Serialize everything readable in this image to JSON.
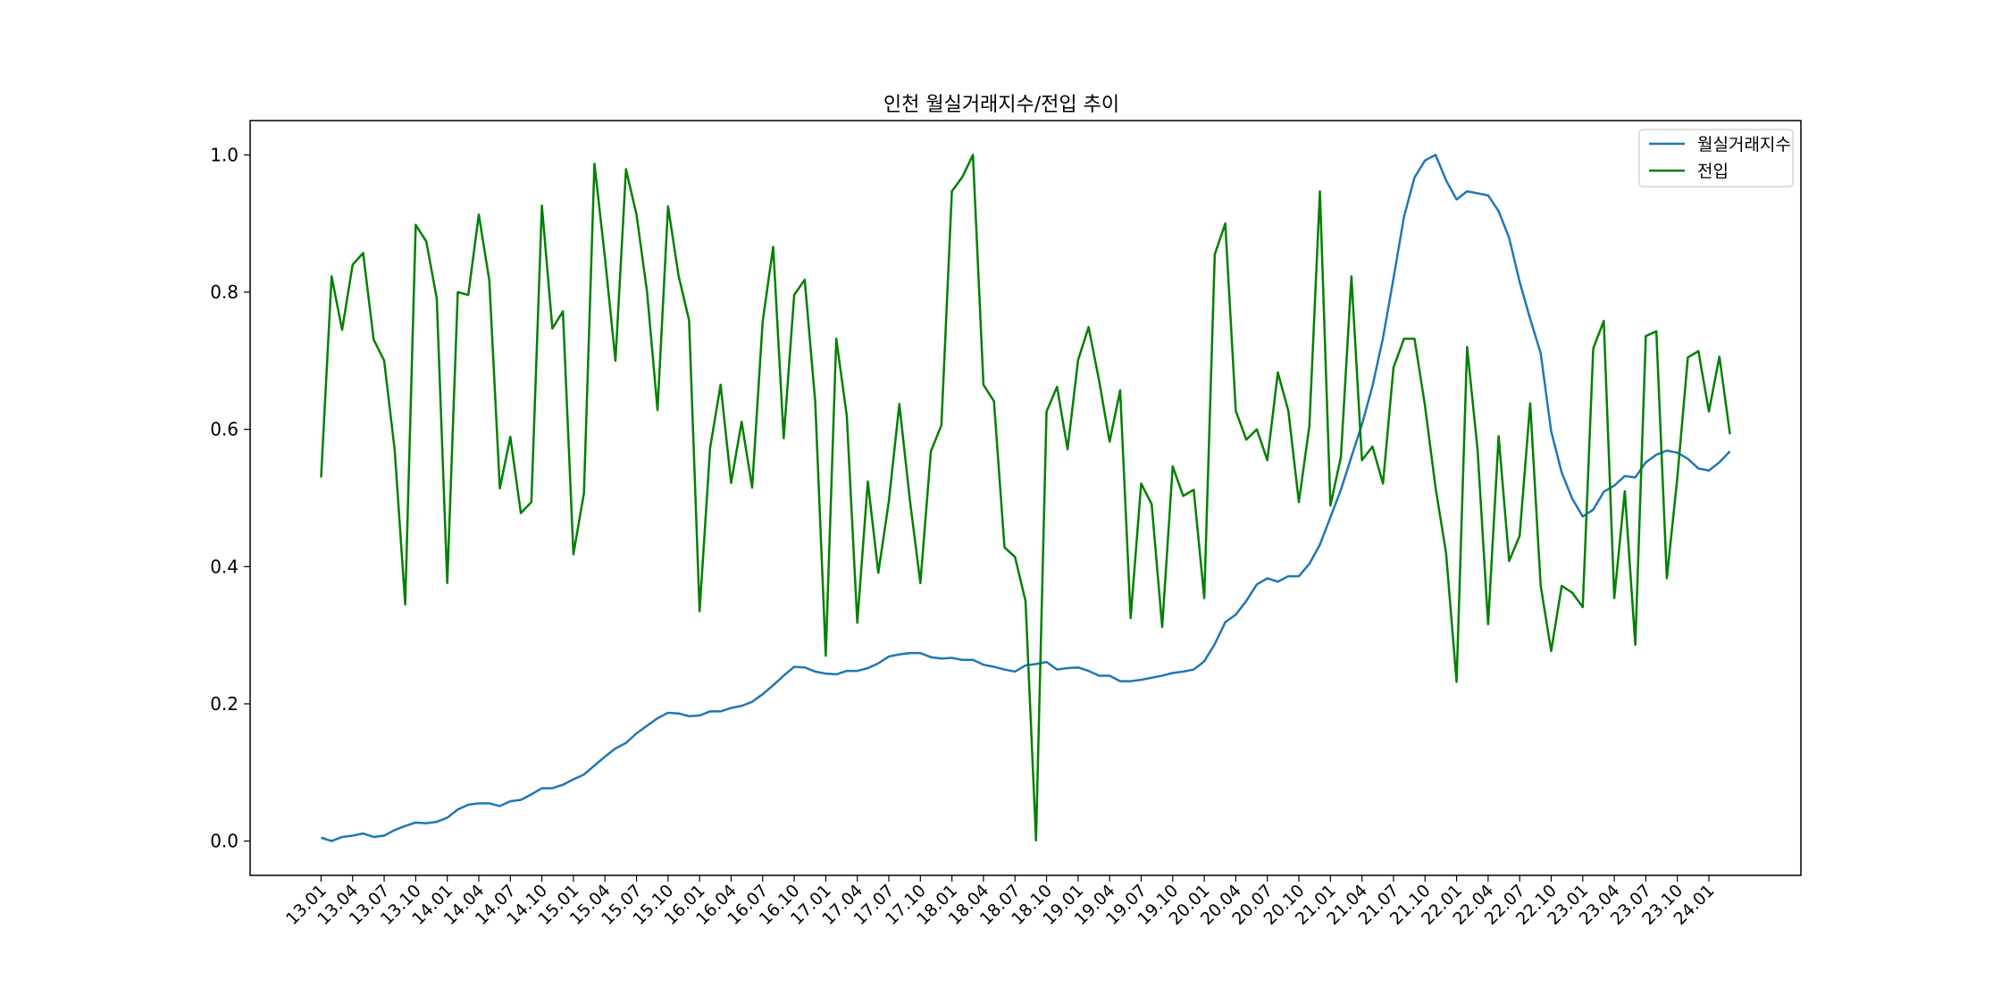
{
  "chart_data": {
    "type": "line",
    "title": "인천 월실거래지수/전입 추이",
    "xlabel": "",
    "ylabel": "",
    "ylim": [
      -0.05,
      1.05
    ],
    "yticks": [
      "0.0",
      "0.2",
      "0.4",
      "0.6",
      "0.8",
      "1.0"
    ],
    "yticks_values": [
      0.0,
      0.2,
      0.4,
      0.6,
      0.8,
      1.0
    ],
    "xtick_labels": [
      "13.01",
      "13.04",
      "13.07",
      "13.10",
      "14.01",
      "14.04",
      "14.07",
      "14.10",
      "15.01",
      "15.04",
      "15.07",
      "15.10",
      "16.01",
      "16.04",
      "16.07",
      "16.10",
      "17.01",
      "17.04",
      "17.07",
      "17.10",
      "18.01",
      "18.04",
      "18.07",
      "18.10",
      "19.01",
      "19.04",
      "19.07",
      "19.10",
      "20.01",
      "20.04",
      "20.07",
      "20.10",
      "21.01",
      "21.04",
      "21.07",
      "21.10",
      "22.01",
      "22.04",
      "22.07",
      "22.10",
      "23.01",
      "23.04",
      "23.07",
      "23.10",
      "24.01"
    ],
    "legend_position": "top-right",
    "grid": false,
    "series": [
      {
        "name": "월실거래지수",
        "color": "#1f77b4",
        "values": [
          0.005,
          0.0,
          0.006,
          0.008,
          0.011,
          0.006,
          0.008,
          0.016,
          0.022,
          0.027,
          0.026,
          0.028,
          0.034,
          0.046,
          0.053,
          0.055,
          0.055,
          0.051,
          0.058,
          0.06,
          0.068,
          0.077,
          0.077,
          0.082,
          0.09,
          0.097,
          0.11,
          0.123,
          0.135,
          0.143,
          0.157,
          0.168,
          0.179,
          0.187,
          0.186,
          0.182,
          0.183,
          0.189,
          0.189,
          0.194,
          0.197,
          0.203,
          0.214,
          0.227,
          0.241,
          0.254,
          0.253,
          0.247,
          0.244,
          0.243,
          0.248,
          0.248,
          0.252,
          0.259,
          0.269,
          0.272,
          0.274,
          0.274,
          0.268,
          0.266,
          0.267,
          0.264,
          0.264,
          0.257,
          0.254,
          0.25,
          0.247,
          0.256,
          0.258,
          0.261,
          0.25,
          0.252,
          0.253,
          0.248,
          0.241,
          0.241,
          0.233,
          0.233,
          0.235,
          0.238,
          0.241,
          0.245,
          0.247,
          0.25,
          0.262,
          0.287,
          0.319,
          0.33,
          0.35,
          0.374,
          0.383,
          0.378,
          0.386,
          0.386,
          0.404,
          0.432,
          0.472,
          0.512,
          0.56,
          0.607,
          0.663,
          0.733,
          0.82,
          0.91,
          0.967,
          0.992,
          1.0,
          0.963,
          0.935,
          0.947,
          0.944,
          0.941,
          0.918,
          0.879,
          0.815,
          0.761,
          0.711,
          0.597,
          0.537,
          0.499,
          0.473,
          0.483,
          0.509,
          0.518,
          0.532,
          0.53,
          0.552,
          0.563,
          0.569,
          0.566,
          0.557,
          0.543,
          0.54,
          0.552,
          0.568
        ]
      },
      {
        "name": "전입",
        "color": "#008000",
        "values": [
          0.53,
          0.823,
          0.745,
          0.84,
          0.857,
          0.731,
          0.7,
          0.57,
          0.345,
          0.898,
          0.874,
          0.791,
          0.376,
          0.8,
          0.796,
          0.913,
          0.817,
          0.514,
          0.589,
          0.478,
          0.494,
          0.926,
          0.747,
          0.772,
          0.418,
          0.507,
          0.987,
          0.85,
          0.7,
          0.979,
          0.913,
          0.801,
          0.628,
          0.925,
          0.824,
          0.759,
          0.335,
          0.573,
          0.665,
          0.522,
          0.611,
          0.515,
          0.757,
          0.866,
          0.587,
          0.796,
          0.818,
          0.64,
          0.27,
          0.732,
          0.62,
          0.318,
          0.524,
          0.391,
          0.495,
          0.637,
          0.497,
          0.376,
          0.568,
          0.606,
          0.947,
          0.968,
          1.0,
          0.665,
          0.641,
          0.428,
          0.414,
          0.35,
          0.001,
          0.626,
          0.662,
          0.571,
          0.701,
          0.749,
          0.671,
          0.582,
          0.657,
          0.325,
          0.521,
          0.491,
          0.312,
          0.546,
          0.503,
          0.512,
          0.354,
          0.855,
          0.9,
          0.627,
          0.585,
          0.6,
          0.555,
          0.683,
          0.627,
          0.494,
          0.605,
          0.947,
          0.489,
          0.56,
          0.823,
          0.555,
          0.575,
          0.521,
          0.69,
          0.732,
          0.732,
          0.634,
          0.515,
          0.42,
          0.232,
          0.72,
          0.57,
          0.316,
          0.59,
          0.408,
          0.445,
          0.638,
          0.372,
          0.277,
          0.372,
          0.362,
          0.341,
          0.718,
          0.758,
          0.354,
          0.51,
          0.286,
          0.736,
          0.743,
          0.383,
          0.53,
          0.705,
          0.714,
          0.626,
          0.706,
          0.593
        ]
      }
    ]
  }
}
